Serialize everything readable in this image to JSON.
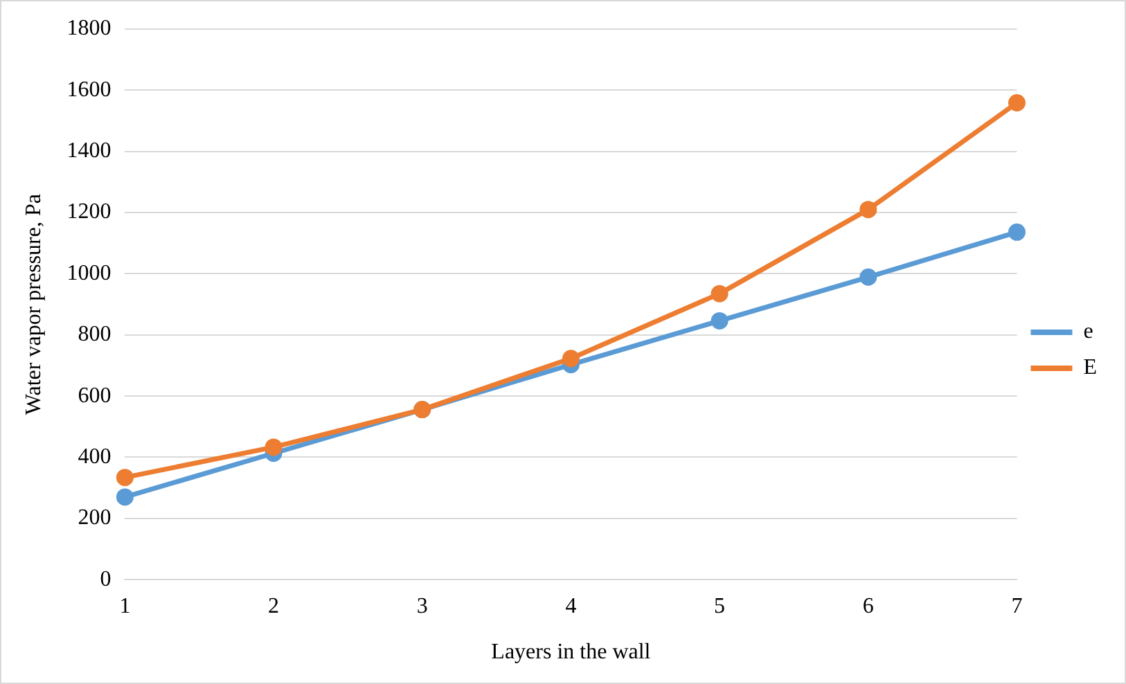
{
  "chart_data": {
    "type": "line",
    "xlabel": "Layers in the wall",
    "ylabel": "Water vapor pressure, Pa",
    "categories": [
      "1",
      "2",
      "3",
      "4",
      "5",
      "6",
      "7"
    ],
    "series": [
      {
        "name": "e",
        "color": "#5b9bd5",
        "values": [
          270,
          413,
          556,
          703,
          846,
          989,
          1136
        ]
      },
      {
        "name": "E",
        "color": "#ed7d31",
        "values": [
          334,
          433,
          556,
          723,
          935,
          1210,
          1559
        ]
      }
    ],
    "ylim": [
      0,
      1800
    ],
    "yticks": [
      0,
      200,
      400,
      600,
      800,
      1000,
      1200,
      1400,
      1600,
      1800
    ],
    "grid": "y",
    "legend": "right",
    "marker": "circle",
    "line_style": "solid"
  }
}
